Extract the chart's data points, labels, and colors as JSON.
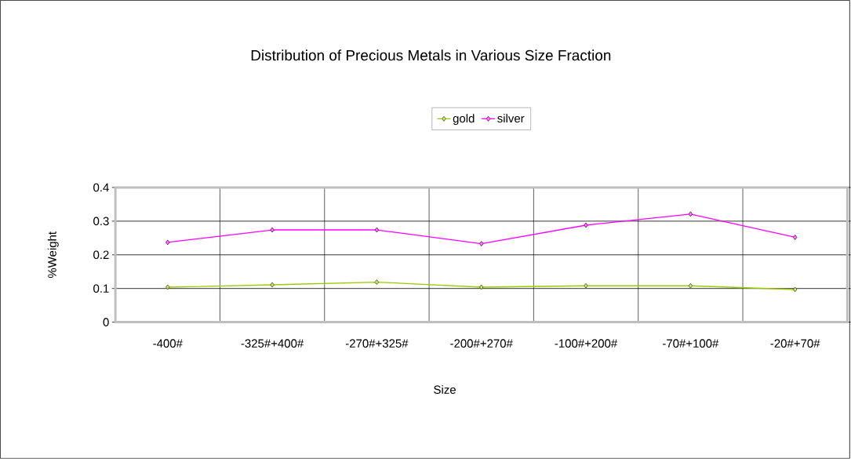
{
  "chart_data": {
    "type": "line",
    "title": "Distribution of Precious Metals in Various Size Fraction",
    "xlabel": "Size",
    "ylabel": "%Weight",
    "categories": [
      "-400#",
      "-325#+400#",
      "-270#+325#",
      "-200#+270#",
      "-100#+200#",
      "-70#+100#",
      "-20#+70#"
    ],
    "series": [
      {
        "name": "gold",
        "color": "#99cc00",
        "values": [
          0.104,
          0.111,
          0.119,
          0.104,
          0.108,
          0.108,
          0.097
        ]
      },
      {
        "name": "silver",
        "color": "#ff00ff",
        "values": [
          0.237,
          0.274,
          0.274,
          0.233,
          0.288,
          0.321,
          0.252
        ]
      }
    ],
    "ylim": [
      0,
      0.4
    ],
    "yticks": [
      0,
      0.1,
      0.2,
      0.3,
      0.4
    ],
    "grid": true,
    "legend": "top",
    "marker": "diamond",
    "line_style": "solid"
  }
}
